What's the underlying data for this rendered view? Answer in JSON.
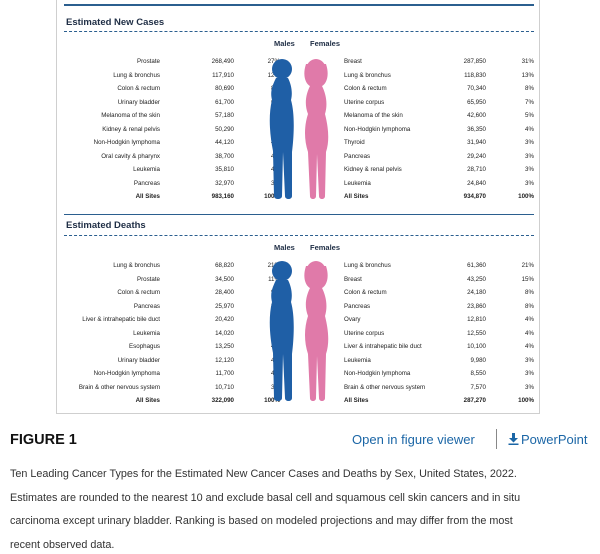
{
  "figure": {
    "label": "FIGURE 1",
    "viewer_link": "Open in figure viewer",
    "ppt_link": "PowerPoint",
    "download_icon": "download-icon",
    "caption_lines": [
      "Ten Leading Cancer Types for the Estimated New Cancer Cases and Deaths by Sex, United States, 2022.",
      "Estimates are rounded to the nearest 10 and exclude basal cell and squamous cell skin cancers and in situ",
      "carcinoma except urinary bladder. Ranking is based on modeled projections and may differ from the most",
      "recent observed data."
    ]
  },
  "colors": {
    "male": "#1f5fa6",
    "female": "#e07aa9",
    "rule": "#2b5f8f",
    "link": "#1b66a6"
  },
  "chart_data": [
    {
      "type": "table",
      "title": "Estimated New Cases",
      "male_header": "Males",
      "female_header": "Females",
      "males": [
        {
          "site": "Prostate",
          "count": "268,490",
          "pct": "27%"
        },
        {
          "site": "Lung & bronchus",
          "count": "117,910",
          "pct": "12%"
        },
        {
          "site": "Colon & rectum",
          "count": "80,690",
          "pct": "8%"
        },
        {
          "site": "Urinary bladder",
          "count": "61,700",
          "pct": "6%"
        },
        {
          "site": "Melanoma of the skin",
          "count": "57,180",
          "pct": "6%"
        },
        {
          "site": "Kidney & renal pelvis",
          "count": "50,290",
          "pct": "5%"
        },
        {
          "site": "Non-Hodgkin lymphoma",
          "count": "44,120",
          "pct": "4%"
        },
        {
          "site": "Oral cavity & pharynx",
          "count": "38,700",
          "pct": "4%"
        },
        {
          "site": "Leukemia",
          "count": "35,810",
          "pct": "4%"
        },
        {
          "site": "Pancreas",
          "count": "32,970",
          "pct": "3%"
        }
      ],
      "males_total": {
        "site": "All Sites",
        "count": "983,160",
        "pct": "100%"
      },
      "females": [
        {
          "site": "Breast",
          "count": "287,850",
          "pct": "31%"
        },
        {
          "site": "Lung & bronchus",
          "count": "118,830",
          "pct": "13%"
        },
        {
          "site": "Colon & rectum",
          "count": "70,340",
          "pct": "8%"
        },
        {
          "site": "Uterine corpus",
          "count": "65,950",
          "pct": "7%"
        },
        {
          "site": "Melanoma of the skin",
          "count": "42,600",
          "pct": "5%"
        },
        {
          "site": "Non-Hodgkin lymphoma",
          "count": "36,350",
          "pct": "4%"
        },
        {
          "site": "Thyroid",
          "count": "31,940",
          "pct": "3%"
        },
        {
          "site": "Pancreas",
          "count": "29,240",
          "pct": "3%"
        },
        {
          "site": "Kidney & renal pelvis",
          "count": "28,710",
          "pct": "3%"
        },
        {
          "site": "Leukemia",
          "count": "24,840",
          "pct": "3%"
        }
      ],
      "females_total": {
        "site": "All Sites",
        "count": "934,870",
        "pct": "100%"
      }
    },
    {
      "type": "table",
      "title": "Estimated Deaths",
      "male_header": "Males",
      "female_header": "Females",
      "males": [
        {
          "site": "Lung & bronchus",
          "count": "68,820",
          "pct": "21%"
        },
        {
          "site": "Prostate",
          "count": "34,500",
          "pct": "11%"
        },
        {
          "site": "Colon & rectum",
          "count": "28,400",
          "pct": "9%"
        },
        {
          "site": "Pancreas",
          "count": "25,970",
          "pct": "8%"
        },
        {
          "site": "Liver & intrahepatic bile duct",
          "count": "20,420",
          "pct": "6%"
        },
        {
          "site": "Leukemia",
          "count": "14,020",
          "pct": "4%"
        },
        {
          "site": "Esophagus",
          "count": "13,250",
          "pct": "4%"
        },
        {
          "site": "Urinary bladder",
          "count": "12,120",
          "pct": "4%"
        },
        {
          "site": "Non-Hodgkin lymphoma",
          "count": "11,700",
          "pct": "4%"
        },
        {
          "site": "Brain & other nervous system",
          "count": "10,710",
          "pct": "3%"
        }
      ],
      "males_total": {
        "site": "All Sites",
        "count": "322,090",
        "pct": "100%"
      },
      "females": [
        {
          "site": "Lung & bronchus",
          "count": "61,360",
          "pct": "21%"
        },
        {
          "site": "Breast",
          "count": "43,250",
          "pct": "15%"
        },
        {
          "site": "Colon & rectum",
          "count": "24,180",
          "pct": "8%"
        },
        {
          "site": "Pancreas",
          "count": "23,860",
          "pct": "8%"
        },
        {
          "site": "Ovary",
          "count": "12,810",
          "pct": "4%"
        },
        {
          "site": "Uterine corpus",
          "count": "12,550",
          "pct": "4%"
        },
        {
          "site": "Liver & intrahepatic bile duct",
          "count": "10,100",
          "pct": "4%"
        },
        {
          "site": "Leukemia",
          "count": "9,980",
          "pct": "3%"
        },
        {
          "site": "Non-Hodgkin lymphoma",
          "count": "8,550",
          "pct": "3%"
        },
        {
          "site": "Brain & other nervous system",
          "count": "7,570",
          "pct": "3%"
        }
      ],
      "females_total": {
        "site": "All Sites",
        "count": "287,270",
        "pct": "100%"
      }
    }
  ]
}
